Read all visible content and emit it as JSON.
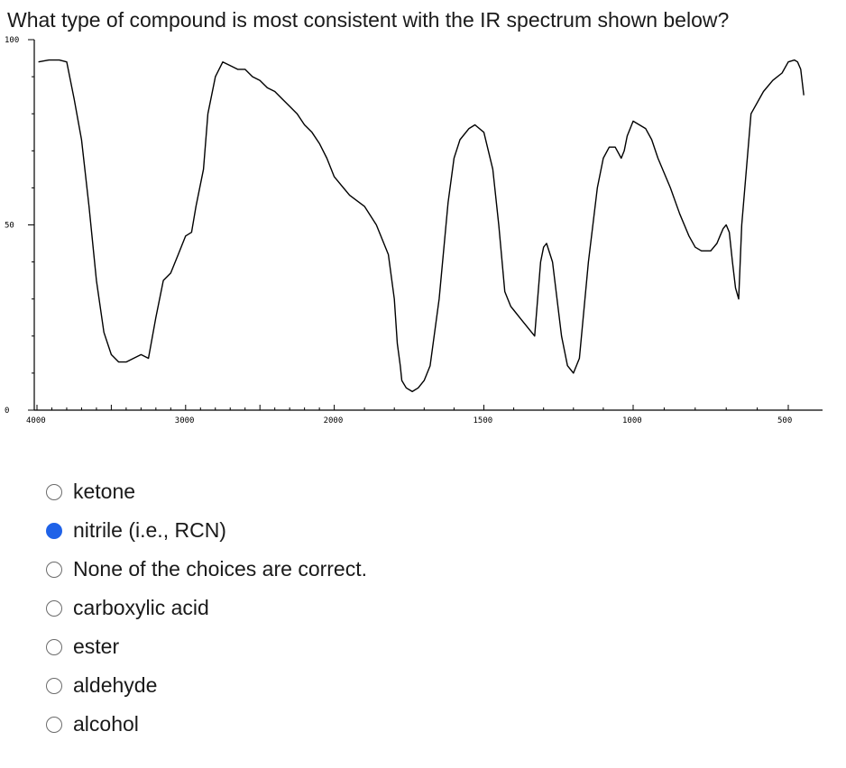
{
  "question": {
    "text": "What type of compound is most consistent with the IR spectrum shown below?"
  },
  "chart_data": {
    "type": "line",
    "title": "",
    "xlabel": "",
    "ylabel": "",
    "xlim": [
      4000,
      450
    ],
    "ylim": [
      0,
      100
    ],
    "y_ticks": [
      {
        "value": 100,
        "label": "100"
      },
      {
        "value": 50,
        "label": "50"
      },
      {
        "value": 0,
        "label": "0"
      }
    ],
    "x_ticks": [
      {
        "value": 4000,
        "label": "4000"
      },
      {
        "value": 3000,
        "label": "3000"
      },
      {
        "value": 2000,
        "label": "2000"
      },
      {
        "value": 1500,
        "label": "1500"
      },
      {
        "value": 1000,
        "label": "1000"
      },
      {
        "value": 500,
        "label": "500"
      }
    ],
    "series": [
      {
        "x": [
          3990,
          3920,
          3850,
          3800,
          3750,
          3700,
          3650,
          3600,
          3550,
          3500,
          3450,
          3400,
          3350,
          3300,
          3250,
          3200,
          3150,
          3100,
          3050,
          3000,
          2960,
          2930,
          2880,
          2850,
          2800,
          2750,
          2700,
          2650,
          2600,
          2550,
          2500,
          2450,
          2400,
          2350,
          2300,
          2250,
          2200,
          2150,
          2100,
          2050,
          2000,
          1950,
          1900,
          1860,
          1820,
          1800,
          1790,
          1780,
          1775,
          1760,
          1740,
          1720,
          1700,
          1680,
          1650,
          1620,
          1600,
          1580,
          1550,
          1530,
          1500,
          1470,
          1450,
          1430,
          1420,
          1410,
          1400,
          1380,
          1350,
          1330,
          1310,
          1300,
          1290,
          1270,
          1240,
          1220,
          1200,
          1180,
          1150,
          1120,
          1100,
          1080,
          1060,
          1040,
          1030,
          1020,
          1010,
          1000,
          980,
          960,
          940,
          920,
          880,
          850,
          820,
          800,
          780,
          750,
          730,
          720,
          710,
          700,
          690,
          680,
          670,
          660,
          650,
          620,
          580,
          550,
          520,
          500,
          480,
          470,
          460,
          450
        ],
        "y": [
          94,
          94.5,
          94.5,
          94,
          84,
          73,
          55,
          35,
          21,
          15,
          13,
          13,
          14,
          15,
          14,
          25,
          35,
          37,
          42,
          47,
          48,
          55,
          65,
          80,
          90,
          94,
          93,
          92,
          92,
          90,
          89,
          87,
          86,
          84,
          82,
          80,
          77,
          75,
          72,
          68,
          63,
          58,
          55,
          50,
          42,
          30,
          18,
          12,
          8,
          6,
          5,
          6,
          8,
          12,
          30,
          56,
          68,
          73,
          76,
          77,
          75,
          65,
          50,
          32,
          30,
          28,
          27,
          25,
          22,
          20,
          40,
          44,
          45,
          40,
          20,
          12,
          10,
          14,
          40,
          60,
          68,
          71,
          71,
          68,
          70,
          74,
          76,
          78,
          77,
          76,
          73,
          68,
          60,
          53,
          47,
          44,
          43,
          43,
          45,
          47,
          49,
          50,
          48,
          40,
          33,
          30,
          50,
          80,
          86,
          89,
          91,
          94,
          94.5,
          94,
          92,
          85
        ],
        "color": "#000000"
      }
    ],
    "grid": false,
    "legend": "none"
  },
  "options": [
    {
      "label": "ketone",
      "checked": false
    },
    {
      "label": "nitrile (i.e., RCN)",
      "checked": true
    },
    {
      "label": "None of the choices are correct.",
      "checked": false
    },
    {
      "label": "carboxylic acid",
      "checked": false
    },
    {
      "label": "ester",
      "checked": false
    },
    {
      "label": "aldehyde",
      "checked": false
    },
    {
      "label": "alcohol",
      "checked": false
    }
  ],
  "colors": {
    "radio_selected": "#1f62e8",
    "radio_border": "#6b6b6b",
    "spectrum_line": "#000000"
  }
}
